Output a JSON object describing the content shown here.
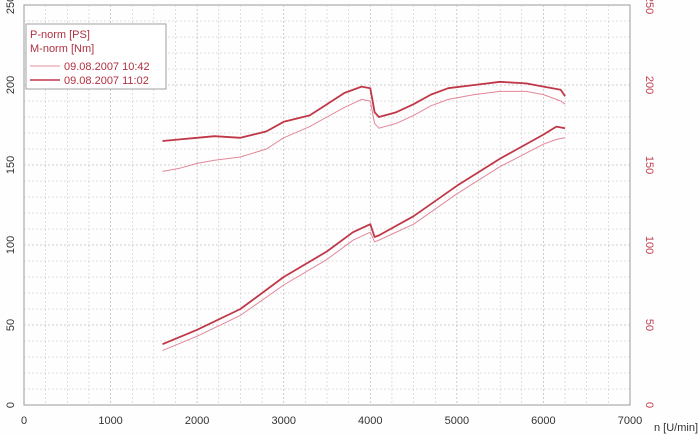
{
  "chart_data": {
    "type": "line",
    "xlabel": "n [U/min]",
    "ylabel_left": "",
    "ylabel_right": "",
    "xlim": [
      0,
      7000
    ],
    "ylim": [
      0,
      250
    ],
    "y2lim": [
      0,
      250
    ],
    "x_ticks": [
      "0",
      "1000",
      "2000",
      "3000",
      "4000",
      "5000",
      "6000",
      "7000"
    ],
    "y_ticks": [
      "0",
      "50",
      "100",
      "150",
      "200",
      "250"
    ],
    "y2_ticks": [
      "0",
      "50",
      "100",
      "150",
      "200",
      "250"
    ],
    "grid": true,
    "legend_position": "top-left",
    "legend_titles": [
      "P-norm [PS]",
      "M-norm [Nm]"
    ],
    "legend_entries": [
      {
        "label": "09.08.2007 10:42",
        "color": "#e090a0"
      },
      {
        "label": "09.08.2007 11:02",
        "color": "#c03848"
      }
    ],
    "colors": {
      "dark_series": "#c03848",
      "light_series": "#e08898",
      "grid": "#bfbfbf",
      "right_axis": "#c04050"
    },
    "series": [
      {
        "name": "09.08.2007 11:02",
        "quantity": "M-norm [Nm]",
        "color": "#c03848",
        "points": [
          [
            1600,
            165
          ],
          [
            1800,
            166
          ],
          [
            2000,
            167
          ],
          [
            2200,
            168
          ],
          [
            2500,
            167
          ],
          [
            2800,
            171
          ],
          [
            3000,
            177
          ],
          [
            3300,
            181
          ],
          [
            3500,
            188
          ],
          [
            3700,
            195
          ],
          [
            3900,
            199
          ],
          [
            4000,
            198
          ],
          [
            4050,
            183
          ],
          [
            4100,
            180
          ],
          [
            4300,
            183
          ],
          [
            4500,
            188
          ],
          [
            4700,
            194
          ],
          [
            4900,
            198
          ],
          [
            5200,
            200
          ],
          [
            5500,
            202
          ],
          [
            5800,
            201
          ],
          [
            6000,
            199
          ],
          [
            6200,
            197
          ],
          [
            6250,
            193
          ]
        ]
      },
      {
        "name": "09.08.2007 10:42",
        "quantity": "M-norm [Nm]",
        "color": "#e08898",
        "points": [
          [
            1600,
            146
          ],
          [
            1800,
            148
          ],
          [
            2000,
            151
          ],
          [
            2200,
            153
          ],
          [
            2500,
            155
          ],
          [
            2800,
            160
          ],
          [
            3000,
            167
          ],
          [
            3300,
            174
          ],
          [
            3500,
            180
          ],
          [
            3700,
            186
          ],
          [
            3900,
            191
          ],
          [
            4000,
            190
          ],
          [
            4050,
            176
          ],
          [
            4100,
            173
          ],
          [
            4300,
            176
          ],
          [
            4500,
            181
          ],
          [
            4700,
            187
          ],
          [
            4900,
            191
          ],
          [
            5200,
            194
          ],
          [
            5500,
            196
          ],
          [
            5800,
            196
          ],
          [
            6000,
            194
          ],
          [
            6200,
            190
          ],
          [
            6250,
            188
          ]
        ]
      },
      {
        "name": "09.08.2007 11:02",
        "quantity": "P-norm [PS]",
        "color": "#c03848",
        "points": [
          [
            1600,
            38
          ],
          [
            2000,
            47
          ],
          [
            2500,
            60
          ],
          [
            3000,
            80
          ],
          [
            3500,
            96
          ],
          [
            3800,
            108
          ],
          [
            4000,
            113
          ],
          [
            4050,
            105
          ],
          [
            4100,
            106
          ],
          [
            4500,
            118
          ],
          [
            5000,
            137
          ],
          [
            5500,
            154
          ],
          [
            6000,
            169
          ],
          [
            6150,
            174
          ],
          [
            6250,
            173
          ]
        ]
      },
      {
        "name": "09.08.2007 10:42",
        "quantity": "P-norm [PS]",
        "color": "#e08898",
        "points": [
          [
            1600,
            34
          ],
          [
            2000,
            43
          ],
          [
            2500,
            56
          ],
          [
            3000,
            75
          ],
          [
            3500,
            91
          ],
          [
            3800,
            103
          ],
          [
            4000,
            108
          ],
          [
            4050,
            102
          ],
          [
            4100,
            103
          ],
          [
            4500,
            113
          ],
          [
            5000,
            132
          ],
          [
            5500,
            149
          ],
          [
            6000,
            163
          ],
          [
            6150,
            166
          ],
          [
            6250,
            167
          ]
        ]
      }
    ]
  }
}
